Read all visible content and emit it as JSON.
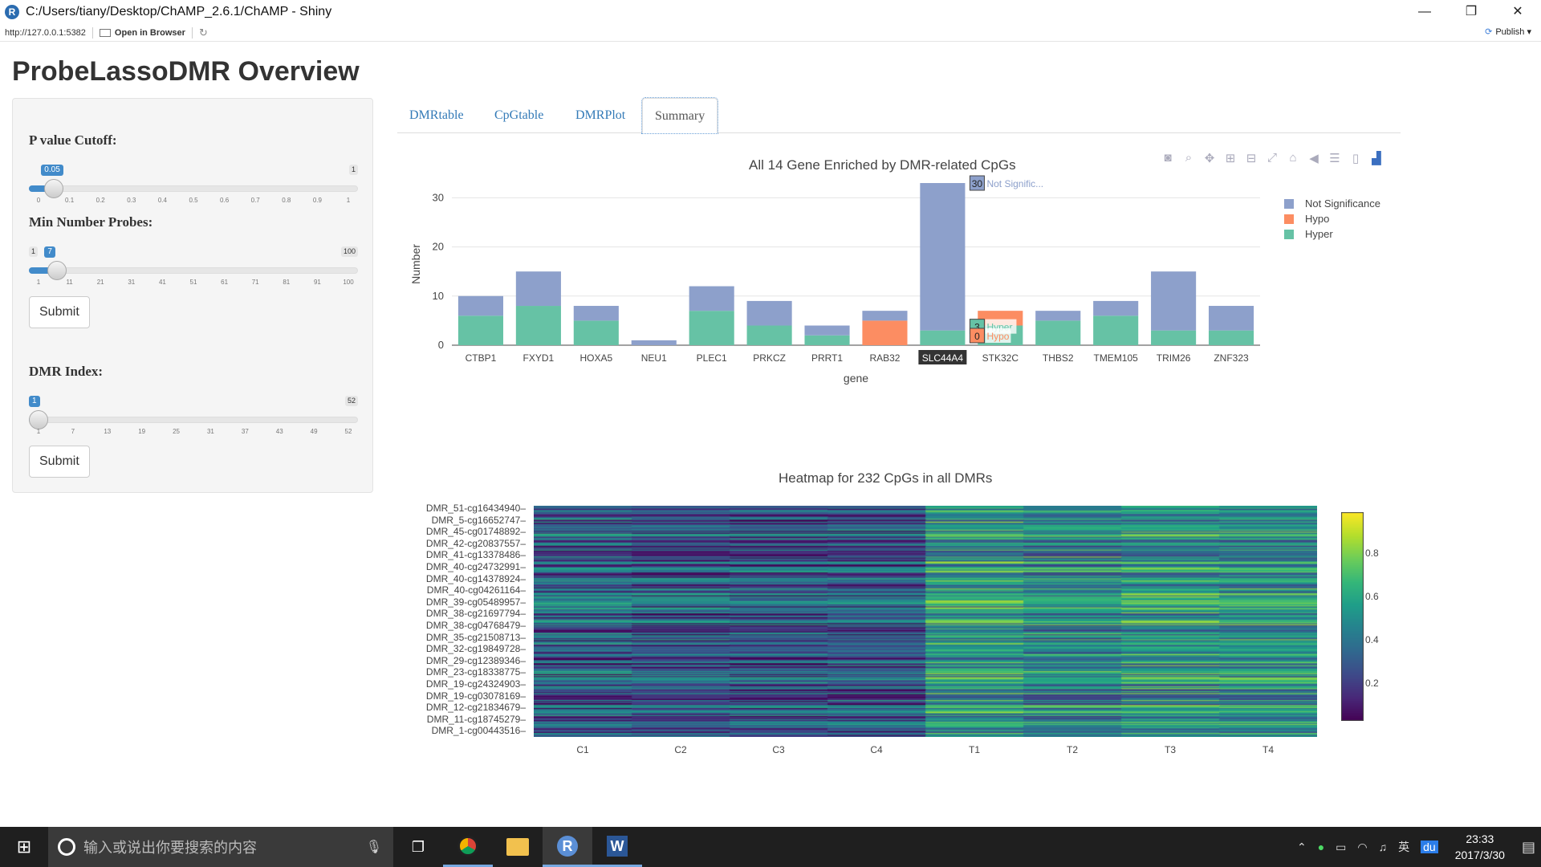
{
  "window": {
    "title": "C:/Users/tiany/Desktop/ChAMP_2.6.1/ChAMP - Shiny",
    "app_icon": "R",
    "minimize": "—",
    "maximize": "❐",
    "close": "✕"
  },
  "toolbar": {
    "url": "http://127.0.0.1:5382",
    "open_in_browser": "Open in Browser",
    "publish": "Publish"
  },
  "page": {
    "title": "ProbeLassoDMR Overview"
  },
  "sidebar": {
    "pvalue": {
      "label": "P value Cutoff:",
      "value": "0.05",
      "min": "0",
      "max": "1",
      "fraction": 0.05,
      "ticks": [
        "0",
        "0.1",
        "0.2",
        "0.3",
        "0.4",
        "0.5",
        "0.6",
        "0.7",
        "0.8",
        "0.9",
        "1"
      ]
    },
    "minprobes": {
      "label": "Min Number Probes:",
      "value": "7",
      "min": "1",
      "max": "100",
      "fraction": 0.0606,
      "ticks": [
        "1",
        "11",
        "21",
        "31",
        "41",
        "51",
        "61",
        "71",
        "81",
        "91",
        "100"
      ]
    },
    "submit1": "Submit",
    "dmrindex": {
      "label": "DMR Index:",
      "value": "1",
      "min": "1",
      "max": "52",
      "fraction": 0.0,
      "ticks": [
        "1",
        "7",
        "13",
        "19",
        "25",
        "31",
        "37",
        "43",
        "49",
        "52"
      ]
    },
    "submit2": "Submit"
  },
  "tabs": [
    {
      "label": "DMRtable"
    },
    {
      "label": "CpGtable"
    },
    {
      "label": "DMRPlot"
    },
    {
      "label": "Summary"
    }
  ],
  "active_tab": "Summary",
  "bar_chart": {
    "title": "All 14 Gene Enriched by DMR-related CpGs",
    "xlabel": "gene",
    "ylabel": "Number",
    "legend": [
      "Not Significance",
      "Hypo",
      "Hyper"
    ],
    "tooltip": {
      "gene": "SLC44A4",
      "not_sig": "30",
      "not_sig_label": "Not Signific...",
      "hyper": "3",
      "hyper_label": "Hyper",
      "hypo": "0",
      "hypo_label": "Hypo"
    },
    "modebar_icons": [
      "camera-icon",
      "zoom-icon",
      "pan-icon",
      "zoom-in-icon",
      "zoom-out-icon",
      "autoscale-icon",
      "home-icon",
      "hover-closest-icon",
      "hover-compare-icon",
      "spike-icon",
      "plotly-logo-icon"
    ]
  },
  "heatmap": {
    "title": "Heatmap for 232 CpGs in all DMRs",
    "row_labels": [
      "DMR_51-cg16434940",
      "DMR_5-cg16652747",
      "DMR_45-cg01748892",
      "DMR_42-cg20837557",
      "DMR_41-cg13378486",
      "DMR_40-cg24732991",
      "DMR_40-cg14378924",
      "DMR_40-cg04261164",
      "DMR_39-cg05489957",
      "DMR_38-cg21697794",
      "DMR_38-cg04768479",
      "DMR_35-cg21508713",
      "DMR_32-cg19849728",
      "DMR_29-cg12389346",
      "DMR_23-cg18338775",
      "DMR_19-cg24324903",
      "DMR_19-cg03078169",
      "DMR_12-cg21834679",
      "DMR_11-cg18745279",
      "DMR_1-cg00443516"
    ],
    "colorbar_ticks": [
      "0.8",
      "0.6",
      "0.4",
      "0.2"
    ]
  },
  "chart_data": [
    {
      "type": "bar",
      "title": "All 14 Gene Enriched by DMR-related CpGs",
      "xlabel": "gene",
      "ylabel": "Number",
      "stacked": true,
      "ylim": [
        0,
        33
      ],
      "yticks": [
        0,
        10,
        20,
        30
      ],
      "legend_position": "top-right",
      "categories": [
        "CTBP1",
        "FXYD1",
        "HOXA5",
        "NEU1",
        "PLEC1",
        "PRKCZ",
        "PRRT1",
        "RAB32",
        "SLC44A4",
        "STK32C",
        "THBS2",
        "TMEM105",
        "TRIM26",
        "ZNF323"
      ],
      "series": [
        {
          "name": "Hyper",
          "color": "#66c2a5",
          "values": [
            6,
            8,
            5,
            0,
            7,
            4,
            2,
            0,
            3,
            4,
            5,
            6,
            3,
            3
          ]
        },
        {
          "name": "Hypo",
          "color": "#fc8d62",
          "values": [
            0,
            0,
            0,
            0,
            0,
            0,
            0,
            5,
            0,
            3,
            0,
            0,
            0,
            0
          ]
        },
        {
          "name": "Not Significance",
          "color": "#8da0cb",
          "values": [
            4,
            7,
            3,
            1,
            5,
            5,
            2,
            2,
            30,
            0,
            2,
            3,
            12,
            5
          ]
        }
      ]
    },
    {
      "type": "heatmap",
      "title": "Heatmap for 232 CpGs in all DMRs",
      "columns": [
        "C1",
        "C2",
        "C3",
        "C4",
        "T1",
        "T2",
        "T3",
        "T4"
      ],
      "rows": 232,
      "colorscale": "viridis",
      "zlim": [
        0,
        1
      ],
      "colorbar_ticks": [
        0.2,
        0.4,
        0.6,
        0.8
      ],
      "column_means": [
        0.55,
        0.48,
        0.47,
        0.5,
        0.75,
        0.62,
        0.72,
        0.68
      ]
    }
  ],
  "taskbar": {
    "search_placeholder": "输入或说出你要搜索的内容",
    "time": "23:33",
    "date": "2017/3/30",
    "ime": "英",
    "apps": [
      "task-view-icon",
      "chrome-icon",
      "file-explorer-icon",
      "r-icon",
      "word-icon"
    ]
  }
}
